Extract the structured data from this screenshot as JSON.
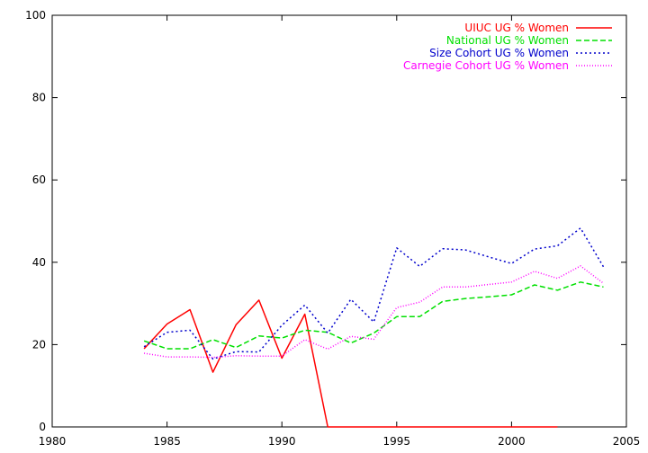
{
  "chart_data": {
    "type": "line",
    "title": "",
    "xlabel": "",
    "ylabel": "",
    "xlim": [
      1980,
      2005
    ],
    "ylim": [
      0,
      100
    ],
    "xticks": [
      1980,
      1985,
      1990,
      1995,
      2000,
      2005
    ],
    "yticks": [
      0,
      20,
      40,
      60,
      80,
      100
    ],
    "grid": false,
    "legend_position": "top-right",
    "series": [
      {
        "name": "UIUC UG % Women",
        "color": "#ff0000",
        "dash": "solid",
        "x": [
          1984,
          1985,
          1986,
          1987,
          1988,
          1989,
          1990,
          1991,
          1992,
          1993,
          1994,
          1995,
          1996,
          1997,
          1998,
          1999,
          2000,
          2001,
          2002
        ],
        "y": [
          19,
          25,
          28.5,
          13.3,
          24.8,
          30.8,
          16.7,
          27.4,
          0,
          0,
          0,
          0,
          0,
          0,
          0,
          0,
          0,
          0,
          0
        ]
      },
      {
        "name": "National UG % Women",
        "color": "#00e000",
        "dash": "dashed",
        "x": [
          1984,
          1985,
          1986,
          1987,
          1988,
          1989,
          1990,
          1991,
          1992,
          1993,
          1994,
          1995,
          1996,
          1997,
          1998,
          1999,
          2000,
          2001,
          2002,
          2003,
          2004
        ],
        "y": [
          20.9,
          19,
          19,
          21.2,
          19.3,
          22.1,
          21.6,
          23.5,
          23,
          20.4,
          22.8,
          26.8,
          26.8,
          30.5,
          31.2,
          31.6,
          32.1,
          34.5,
          33.2,
          35.2,
          34
        ]
      },
      {
        "name": "Size Cohort UG % Women",
        "color": "#0000cc",
        "dash": "dotted",
        "x": [
          1984,
          1985,
          1986,
          1987,
          1988,
          1989,
          1990,
          1991,
          1992,
          1993,
          1994,
          1995,
          1996,
          1997,
          1998,
          1999,
          2000,
          2001,
          2002,
          2003,
          2004
        ],
        "y": [
          19.5,
          23,
          23.5,
          16.5,
          18.3,
          18.2,
          24.7,
          29.6,
          22.8,
          31,
          25.5,
          43.5,
          39,
          43.3,
          43,
          41.3,
          39.7,
          43.2,
          44,
          48.3,
          38.9
        ]
      },
      {
        "name": "Carnegie Cohort UG % Women",
        "color": "#ff00ff",
        "dash": "dotted-fine",
        "x": [
          1984,
          1985,
          1986,
          1987,
          1988,
          1989,
          1990,
          1991,
          1992,
          1993,
          1994,
          1995,
          1996,
          1997,
          1998,
          1999,
          2000,
          2001,
          2002,
          2003,
          2004
        ],
        "y": [
          17.9,
          17,
          17,
          16.9,
          17.3,
          17.2,
          17.2,
          21.2,
          18.9,
          22,
          21.3,
          29,
          30.3,
          34,
          34,
          34.6,
          35.2,
          37.8,
          36.1,
          39.1,
          34.9
        ]
      }
    ]
  }
}
